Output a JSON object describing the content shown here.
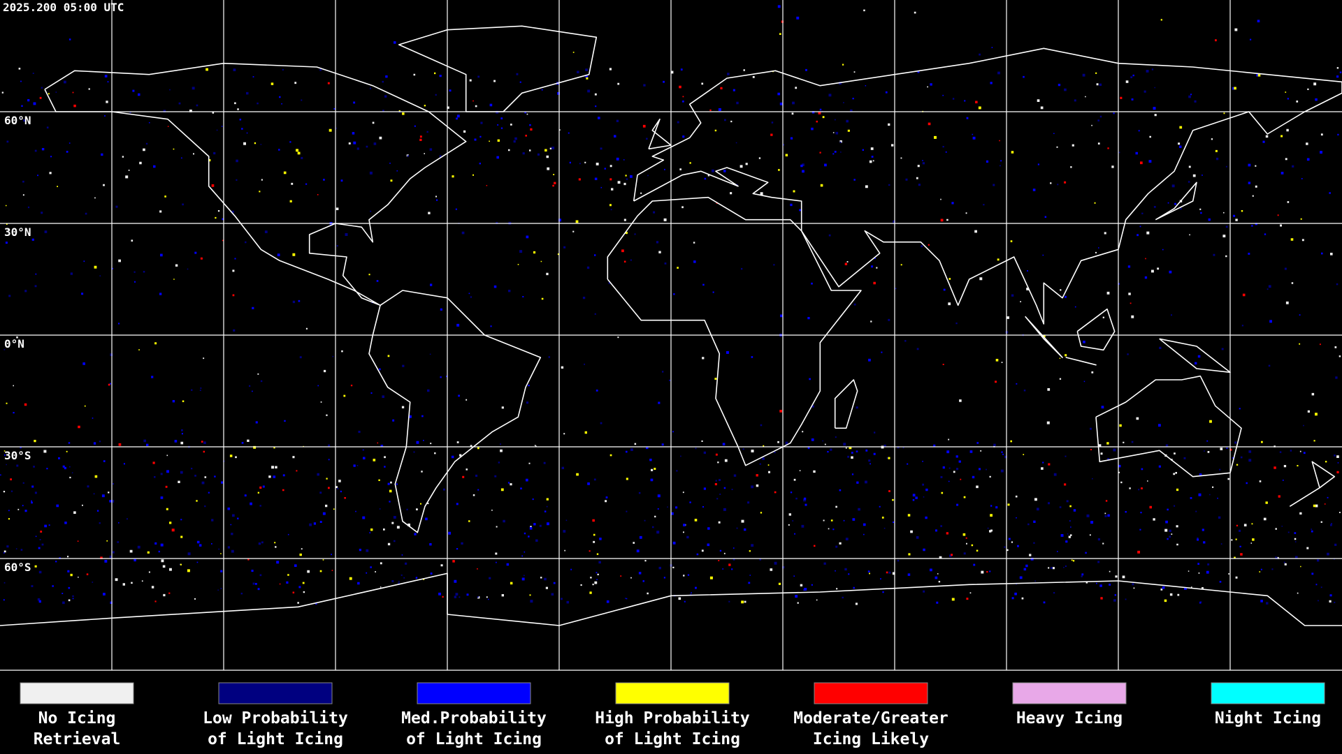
{
  "header": {
    "timestamp": "2025.200 05:00 UTC"
  },
  "map": {
    "latitude_labels": [
      "60°N",
      "30°N",
      "0°N",
      "30°S",
      "60°S"
    ]
  },
  "legend": {
    "items": [
      {
        "label": [
          "No Icing",
          "Retrieval"
        ],
        "color": "#f0f0f0"
      },
      {
        "label": [
          "Low Probability",
          "of Light Icing"
        ],
        "color": "#000080"
      },
      {
        "label": [
          "Med.Probability",
          "of Light Icing"
        ],
        "color": "#0000ff"
      },
      {
        "label": [
          "High Probability",
          "of Light Icing"
        ],
        "color": "#ffff00"
      },
      {
        "label": [
          "Moderate/Greater",
          "Icing Likely"
        ],
        "color": "#ff0000"
      },
      {
        "label": [
          "Heavy Icing"
        ],
        "color": "#e8a8e8"
      },
      {
        "label": [
          "Night Icing"
        ],
        "color": "#00ffff"
      }
    ]
  }
}
